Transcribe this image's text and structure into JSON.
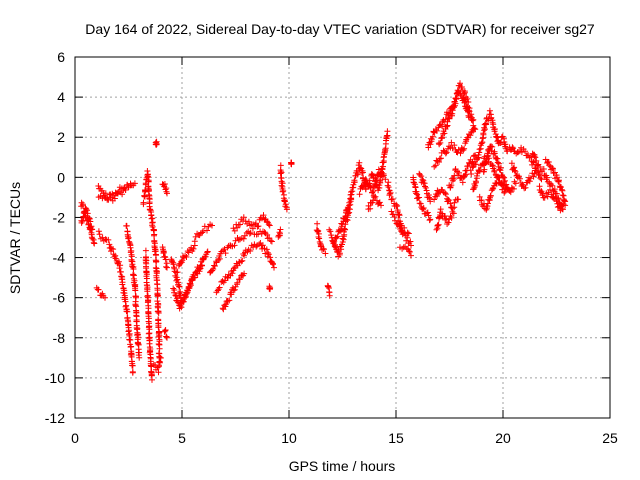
{
  "chart_data": {
    "type": "scatter",
    "title": "Day 164 of 2022, Sidereal Day-to-day VTEC variation (SDTVAR) for receiver sg27",
    "xlabel": "GPS time / hours",
    "ylabel": "SDTVAR / TECUs",
    "xlim": [
      0,
      25
    ],
    "ylim": [
      -12,
      6
    ],
    "xticks": [
      0,
      5,
      10,
      15,
      20,
      25
    ],
    "yticks": [
      -12,
      -10,
      -8,
      -6,
      -4,
      -2,
      0,
      2,
      4,
      6
    ],
    "grid": true,
    "marker": "+",
    "color": "#ff0000",
    "series": [
      {
        "name": "sg27",
        "trace_segments": [
          [
            [
              0.3,
              -1.3
            ],
            [
              0.6,
              -2.2
            ],
            [
              0.9,
              -3.3
            ]
          ],
          [
            [
              0.3,
              -2.3
            ],
            [
              0.5,
              -1.6
            ],
            [
              0.8,
              -2.6
            ]
          ],
          [
            [
              1.1,
              -0.5
            ],
            [
              1.5,
              -1.2
            ],
            [
              2.0,
              -0.9
            ],
            [
              2.5,
              -0.4
            ],
            [
              2.8,
              -0.3
            ]
          ],
          [
            [
              1.1,
              -1.0
            ],
            [
              1.6,
              -0.9
            ],
            [
              2.1,
              -0.6
            ],
            [
              2.6,
              -0.4
            ]
          ],
          [
            [
              1.0,
              -5.6
            ],
            [
              1.4,
              -6.0
            ]
          ],
          [
            [
              1.1,
              -2.8
            ],
            [
              1.6,
              -3.3
            ],
            [
              2.1,
              -4.5
            ],
            [
              2.4,
              -6.5
            ],
            [
              2.6,
              -8.5
            ],
            [
              2.7,
              -9.7
            ]
          ],
          [
            [
              2.4,
              -2.4
            ],
            [
              2.6,
              -3.5
            ],
            [
              2.8,
              -5.5
            ],
            [
              2.9,
              -7.5
            ],
            [
              3.0,
              -9.0
            ]
          ],
          [
            [
              3.3,
              -3.8
            ],
            [
              3.4,
              -6.0
            ],
            [
              3.5,
              -8.5
            ],
            [
              3.6,
              -10.1
            ]
          ],
          [
            [
              3.2,
              -1.2
            ],
            [
              3.4,
              0.2
            ],
            [
              3.5,
              -1.5
            ],
            [
              3.7,
              -2.8
            ],
            [
              3.8,
              -4.5
            ],
            [
              3.9,
              -7.0
            ],
            [
              3.95,
              -9.0
            ]
          ],
          [
            [
              3.7,
              -9.3
            ],
            [
              3.9,
              -9.6
            ],
            [
              4.0,
              -9.0
            ]
          ],
          [
            [
              3.8,
              1.7
            ]
          ],
          [
            [
              4.1,
              -0.2
            ],
            [
              4.3,
              -0.8
            ]
          ],
          [
            [
              4.1,
              -3.5
            ],
            [
              4.3,
              -4.5
            ]
          ],
          [
            [
              4.2,
              -7.6
            ],
            [
              4.3,
              -8.0
            ]
          ],
          [
            [
              4.5,
              -4.1
            ],
            [
              4.8,
              -5.2
            ],
            [
              5.0,
              -6.3
            ],
            [
              5.3,
              -5.5
            ],
            [
              5.8,
              -4.6
            ],
            [
              6.2,
              -3.7
            ]
          ],
          [
            [
              4.6,
              -5.6
            ],
            [
              4.9,
              -6.5
            ],
            [
              5.2,
              -5.8
            ],
            [
              5.5,
              -5.0
            ],
            [
              6.0,
              -4.1
            ]
          ],
          [
            [
              4.8,
              -4.6
            ],
            [
              5.1,
              -4.0
            ],
            [
              5.6,
              -3.4
            ]
          ],
          [
            [
              5.6,
              -3.1
            ],
            [
              6.0,
              -2.6
            ],
            [
              6.4,
              -2.4
            ]
          ],
          [
            [
              6.3,
              -4.8
            ],
            [
              6.8,
              -3.9
            ],
            [
              7.3,
              -3.4
            ],
            [
              7.8,
              -3.0
            ],
            [
              8.3,
              -2.7
            ],
            [
              8.8,
              -2.8
            ],
            [
              9.2,
              -3.2
            ]
          ],
          [
            [
              6.6,
              -5.6
            ],
            [
              7.1,
              -5.0
            ],
            [
              7.6,
              -4.3
            ],
            [
              8.1,
              -3.6
            ],
            [
              8.6,
              -3.2
            ],
            [
              9.0,
              -3.8
            ],
            [
              9.3,
              -4.5
            ]
          ],
          [
            [
              6.9,
              -6.6
            ],
            [
              7.2,
              -6.0
            ],
            [
              7.5,
              -5.4
            ],
            [
              7.9,
              -4.8
            ]
          ],
          [
            [
              7.4,
              -2.6
            ],
            [
              7.9,
              -2.1
            ],
            [
              8.4,
              -2.5
            ],
            [
              8.8,
              -2.0
            ],
            [
              9.1,
              -2.4
            ]
          ],
          [
            [
              9.1,
              -5.5
            ]
          ],
          [
            [
              9.5,
              -3.0
            ],
            [
              9.6,
              -2.6
            ]
          ],
          [
            [
              9.6,
              0.5
            ],
            [
              9.7,
              -0.6
            ],
            [
              9.9,
              -1.6
            ]
          ],
          [
            [
              10.1,
              0.7
            ]
          ],
          [
            [
              11.3,
              -2.4
            ],
            [
              11.5,
              -3.5
            ],
            [
              11.7,
              -3.8
            ]
          ],
          [
            [
              11.8,
              -5.3
            ],
            [
              11.9,
              -5.9
            ]
          ],
          [
            [
              11.9,
              -2.7
            ],
            [
              12.3,
              -3.9
            ],
            [
              12.5,
              -3.2
            ],
            [
              12.7,
              -2.1
            ],
            [
              12.9,
              -1.1
            ]
          ],
          [
            [
              12.1,
              -3.3
            ],
            [
              12.4,
              -2.6
            ],
            [
              12.7,
              -1.6
            ],
            [
              13.0,
              -0.5
            ]
          ],
          [
            [
              13.0,
              -0.4
            ],
            [
              13.3,
              0.6
            ],
            [
              13.6,
              -0.5
            ],
            [
              13.9,
              0.1
            ],
            [
              14.2,
              -0.6
            ],
            [
              14.4,
              0.8
            ],
            [
              14.6,
              2.3
            ]
          ],
          [
            [
              13.3,
              -0.7
            ],
            [
              13.6,
              -0.1
            ],
            [
              13.9,
              -0.7
            ],
            [
              14.2,
              0.3
            ],
            [
              14.5,
              -0.1
            ]
          ],
          [
            [
              13.7,
              -1.6
            ],
            [
              14.0,
              -1.0
            ],
            [
              14.3,
              -1.4
            ]
          ],
          [
            [
              14.6,
              -0.3
            ],
            [
              14.8,
              -1.1
            ],
            [
              15.0,
              -1.4
            ],
            [
              15.3,
              -2.6
            ],
            [
              15.6,
              -2.8
            ]
          ],
          [
            [
              14.8,
              -1.8
            ],
            [
              15.1,
              -2.3
            ],
            [
              15.4,
              -2.9
            ],
            [
              15.7,
              -3.4
            ]
          ],
          [
            [
              15.2,
              -3.4
            ],
            [
              15.5,
              -3.6
            ],
            [
              15.7,
              -3.9
            ]
          ],
          [
            [
              15.8,
              0.0
            ],
            [
              16.0,
              -1.0
            ],
            [
              16.3,
              -1.6
            ],
            [
              16.6,
              -2.1
            ]
          ],
          [
            [
              16.1,
              0.1
            ],
            [
              16.4,
              -0.6
            ],
            [
              16.6,
              -1.2
            ]
          ],
          [
            [
              16.8,
              -1.1
            ],
            [
              17.0,
              -0.6
            ],
            [
              17.3,
              -0.9
            ],
            [
              17.6,
              -1.5
            ],
            [
              17.9,
              -1.1
            ]
          ],
          [
            [
              16.9,
              -2.6
            ],
            [
              17.1,
              -1.7
            ],
            [
              17.4,
              -2.2
            ],
            [
              17.7,
              -1.8
            ]
          ],
          [
            [
              16.5,
              1.5
            ],
            [
              16.8,
              2.3
            ],
            [
              17.1,
              2.6
            ],
            [
              17.4,
              3.1
            ],
            [
              17.8,
              3.9
            ],
            [
              18.0,
              4.6
            ],
            [
              18.2,
              4.2
            ],
            [
              18.5,
              3.1
            ],
            [
              18.7,
              2.4
            ]
          ],
          [
            [
              17.0,
              1.7
            ],
            [
              17.3,
              2.4
            ],
            [
              17.6,
              3.2
            ],
            [
              17.9,
              4.3
            ],
            [
              18.1,
              4.0
            ],
            [
              18.4,
              3.0
            ]
          ],
          [
            [
              16.8,
              0.6
            ],
            [
              17.2,
              1.2
            ],
            [
              17.6,
              1.6
            ],
            [
              18.0,
              1.2
            ],
            [
              18.3,
              1.8
            ],
            [
              18.6,
              2.3
            ]
          ],
          [
            [
              17.5,
              -0.5
            ],
            [
              17.8,
              0.3
            ],
            [
              18.1,
              -0.2
            ],
            [
              18.4,
              0.6
            ],
            [
              18.7,
              1.1
            ]
          ],
          [
            [
              18.5,
              0.2
            ],
            [
              18.8,
              0.9
            ],
            [
              19.0,
              1.6
            ],
            [
              19.2,
              2.7
            ],
            [
              19.4,
              3.2
            ],
            [
              19.6,
              2.4
            ],
            [
              19.8,
              1.6
            ],
            [
              20.0,
              2.0
            ],
            [
              20.2,
              1.3
            ]
          ],
          [
            [
              18.6,
              -0.6
            ],
            [
              18.9,
              0.4
            ],
            [
              19.2,
              1.0
            ],
            [
              19.5,
              0.6
            ],
            [
              19.8,
              -0.2
            ],
            [
              20.1,
              -0.7
            ]
          ],
          [
            [
              18.9,
              -1.1
            ],
            [
              19.2,
              -1.6
            ],
            [
              19.5,
              -0.6
            ],
            [
              19.8,
              -0.1
            ],
            [
              20.2,
              -0.6
            ]
          ],
          [
            [
              19.1,
              0.3
            ],
            [
              19.4,
              1.6
            ],
            [
              19.7,
              1.0
            ],
            [
              20.0,
              0.0
            ],
            [
              20.3,
              -0.7
            ],
            [
              20.6,
              -0.3
            ]
          ],
          [
            [
              20.3,
              1.6
            ],
            [
              20.6,
              1.1
            ],
            [
              20.9,
              1.4
            ],
            [
              21.3,
              0.9
            ],
            [
              21.6,
              0.3
            ],
            [
              21.8,
              -0.1
            ]
          ],
          [
            [
              20.4,
              0.6
            ],
            [
              20.7,
              0.0
            ],
            [
              21.0,
              -0.5
            ],
            [
              21.3,
              0.0
            ],
            [
              21.6,
              0.3
            ]
          ],
          [
            [
              21.4,
              1.2
            ],
            [
              21.6,
              0.6
            ],
            [
              21.9,
              0.3
            ],
            [
              22.1,
              -0.2
            ],
            [
              22.4,
              -0.6
            ],
            [
              22.6,
              -1.1
            ],
            [
              22.8,
              -1.6
            ]
          ],
          [
            [
              21.7,
              -0.5
            ],
            [
              21.9,
              -1.0
            ],
            [
              22.2,
              -0.7
            ],
            [
              22.5,
              -1.2
            ],
            [
              22.7,
              -1.6
            ],
            [
              22.9,
              -1.4
            ]
          ],
          [
            [
              22.0,
              0.9
            ],
            [
              22.3,
              0.4
            ],
            [
              22.6,
              -0.2
            ],
            [
              22.8,
              -0.8
            ],
            [
              22.9,
              -1.2
            ]
          ]
        ]
      }
    ]
  }
}
